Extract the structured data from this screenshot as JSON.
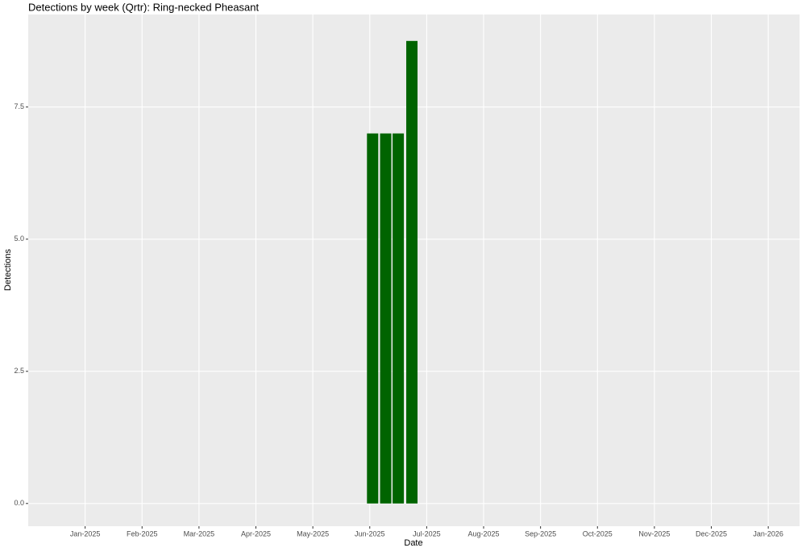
{
  "chart_data": {
    "type": "bar",
    "title": "Detections by week (Qrtr): Ring-necked Pheasant",
    "x_label": "Date",
    "y_label": "Detections",
    "x": [
      6.05,
      6.28,
      6.5,
      6.74
    ],
    "values": [
      7,
      7,
      7,
      8.75
    ],
    "color": "#006400",
    "xlim": [
      0,
      13.55
    ],
    "xticks": [
      {
        "value": 1,
        "label": "Jan-2025"
      },
      {
        "value": 2,
        "label": "Feb-2025"
      },
      {
        "value": 3,
        "label": "Mar-2025"
      },
      {
        "value": 4,
        "label": "Apr-2025"
      },
      {
        "value": 5,
        "label": "May-2025"
      },
      {
        "value": 6,
        "label": "Jun-2025"
      },
      {
        "value": 7,
        "label": "Jul-2025"
      },
      {
        "value": 8,
        "label": "Aug-2025"
      },
      {
        "value": 9,
        "label": "Sep-2025"
      },
      {
        "value": 10,
        "label": "Oct-2025"
      },
      {
        "value": 11,
        "label": "Nov-2025"
      },
      {
        "value": 12,
        "label": "Dec-2025"
      },
      {
        "value": 13,
        "label": "Jan-2026"
      }
    ],
    "ylim": [
      -0.43,
      9.25
    ],
    "yticks": [
      {
        "value": 0,
        "label": "0.0"
      },
      {
        "value": 2.5,
        "label": "2.5"
      },
      {
        "value": 5,
        "label": "5.0"
      },
      {
        "value": 7.5,
        "label": "7.5"
      }
    ],
    "grid": true
  }
}
